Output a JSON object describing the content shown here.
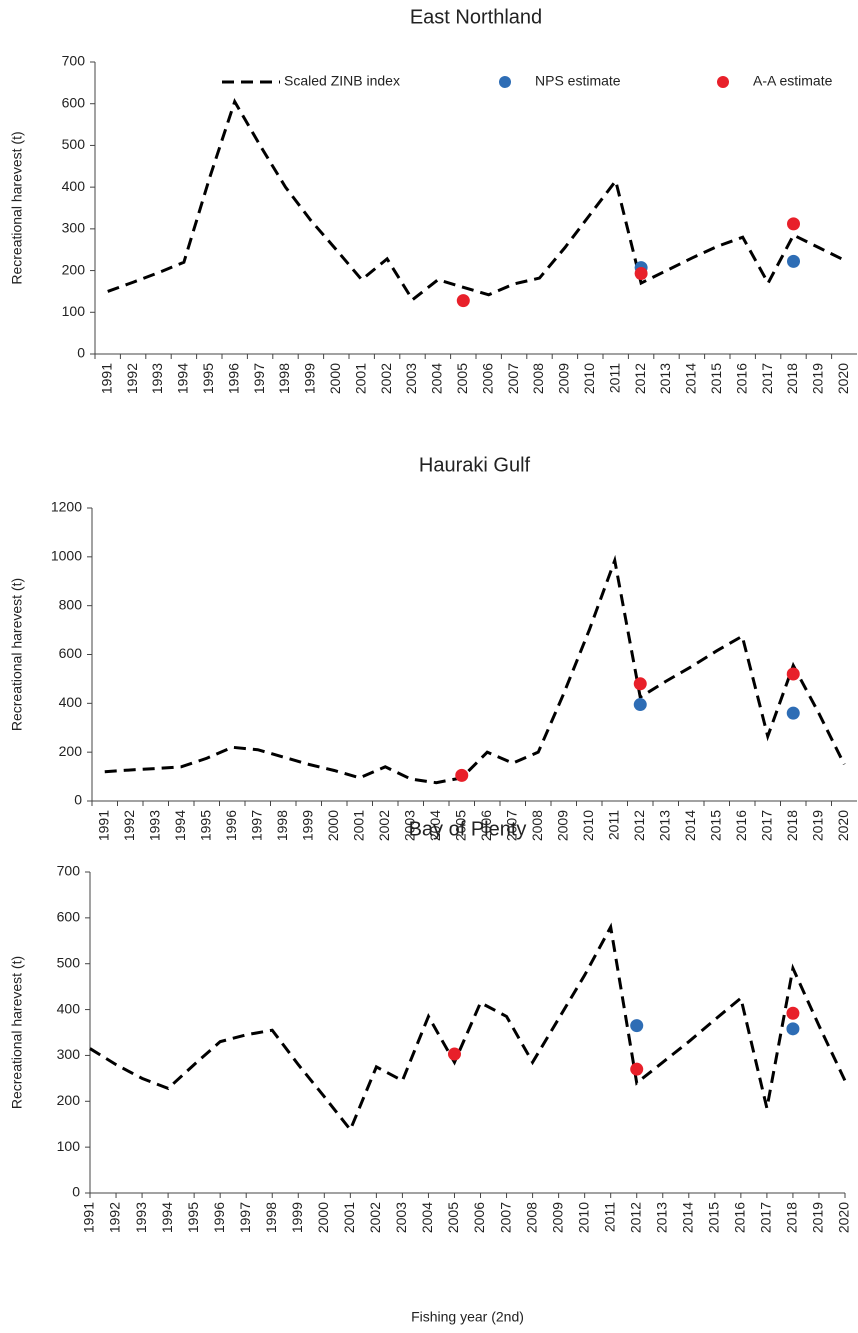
{
  "chart_data": [
    {
      "type": "line",
      "title": "East Northland",
      "ylabel": "Recreational harevest (t)",
      "legend": true,
      "categories": [
        "1991",
        "1992",
        "1993",
        "1994",
        "1995",
        "1996",
        "1997",
        "1998",
        "1999",
        "2000",
        "2001",
        "2002",
        "2003",
        "2004",
        "2005",
        "2006",
        "2007",
        "2008",
        "2009",
        "2010",
        "2011",
        "2012",
        "2013",
        "2014",
        "2015",
        "2016",
        "2017",
        "2018",
        "2019",
        "2020"
      ],
      "ylim": [
        0,
        700
      ],
      "yticks": [
        0,
        100,
        200,
        300,
        400,
        500,
        600,
        700
      ],
      "series": [
        {
          "name": "Scaled ZINB index",
          "color": "#000000",
          "style": "dashed",
          "values": [
            150,
            172,
            195,
            220,
            420,
            605,
            500,
            400,
            320,
            250,
            178,
            228,
            130,
            178,
            160,
            142,
            168,
            182,
            255,
            335,
            415,
            170,
            200,
            230,
            258,
            280,
            170,
            285,
            255,
            225
          ]
        },
        {
          "name": "NPS estimate",
          "color": "#2e6db5",
          "style": "marker",
          "values": [
            null,
            null,
            null,
            null,
            null,
            null,
            null,
            null,
            null,
            null,
            null,
            null,
            null,
            null,
            null,
            null,
            null,
            null,
            null,
            null,
            null,
            207,
            null,
            null,
            null,
            null,
            null,
            222,
            null,
            null
          ]
        },
        {
          "name": "A-A estimate",
          "color": "#e8202a",
          "style": "marker",
          "values": [
            null,
            null,
            null,
            null,
            null,
            null,
            null,
            null,
            null,
            null,
            null,
            null,
            null,
            null,
            128,
            null,
            null,
            null,
            null,
            null,
            null,
            193,
            null,
            null,
            null,
            null,
            null,
            312,
            null,
            null
          ]
        }
      ]
    },
    {
      "type": "line",
      "title": "Hauraki Gulf",
      "ylabel": "Recreational harevest (t)",
      "categories": [
        "1991",
        "1992",
        "1993",
        "1994",
        "1995",
        "1996",
        "1997",
        "1998",
        "1999",
        "2000",
        "2001",
        "2002",
        "2003",
        "2004",
        "2005",
        "2006",
        "2007",
        "2008",
        "2009",
        "2010",
        "2011",
        "2012",
        "2013",
        "2014",
        "2015",
        "2016",
        "2017",
        "2018",
        "2019",
        "2020"
      ],
      "ylim": [
        0,
        1200
      ],
      "yticks": [
        0,
        200,
        400,
        600,
        800,
        1000,
        1200
      ],
      "series": [
        {
          "color": "#000000",
          "style": "dashed",
          "values": [
            120,
            127,
            133,
            140,
            175,
            220,
            210,
            180,
            150,
            125,
            95,
            140,
            90,
            75,
            95,
            200,
            155,
            200,
            440,
            700,
            985,
            425,
            490,
            550,
            615,
            675,
            265,
            555,
            360,
            150
          ]
        },
        {
          "color": "#2e6db5",
          "style": "marker",
          "values": [
            null,
            null,
            null,
            null,
            null,
            null,
            null,
            null,
            null,
            null,
            null,
            null,
            null,
            null,
            null,
            null,
            null,
            null,
            null,
            null,
            null,
            395,
            null,
            null,
            null,
            null,
            null,
            360,
            null,
            null
          ]
        },
        {
          "color": "#e8202a",
          "style": "marker",
          "values": [
            null,
            null,
            null,
            null,
            null,
            null,
            null,
            null,
            null,
            null,
            null,
            null,
            null,
            null,
            105,
            null,
            null,
            null,
            null,
            null,
            null,
            480,
            null,
            null,
            null,
            null,
            null,
            520,
            null,
            null
          ]
        }
      ]
    },
    {
      "type": "line",
      "title": "Bay of Plenty",
      "ylabel": "Recreational harevest (t)",
      "xlabel": "Fishing year (2nd)",
      "categories": [
        "1991",
        "1992",
        "1993",
        "1994",
        "1995",
        "1996",
        "1997",
        "1998",
        "1999",
        "2000",
        "2001",
        "2002",
        "2003",
        "2004",
        "2005",
        "2006",
        "2007",
        "2008",
        "2009",
        "2010",
        "2011",
        "2012",
        "2013",
        "2014",
        "2015",
        "2016",
        "2017",
        "2018",
        "2019",
        "2020"
      ],
      "ylim": [
        0,
        700
      ],
      "yticks": [
        0,
        100,
        200,
        300,
        400,
        500,
        600,
        700
      ],
      "series": [
        {
          "color": "#000000",
          "style": "dashed",
          "values": [
            315,
            280,
            250,
            228,
            280,
            330,
            345,
            355,
            280,
            210,
            138,
            275,
            245,
            385,
            285,
            415,
            385,
            285,
            380,
            475,
            580,
            240,
            285,
            330,
            378,
            425,
            185,
            490,
            365,
            245
          ]
        },
        {
          "color": "#2e6db5",
          "style": "marker",
          "values": [
            null,
            null,
            null,
            null,
            null,
            null,
            null,
            null,
            null,
            null,
            null,
            null,
            null,
            null,
            null,
            null,
            null,
            null,
            null,
            null,
            null,
            365,
            null,
            null,
            null,
            null,
            null,
            358,
            null,
            null
          ]
        },
        {
          "color": "#e8202a",
          "style": "marker",
          "values": [
            null,
            null,
            null,
            null,
            null,
            null,
            null,
            null,
            null,
            null,
            null,
            null,
            null,
            null,
            303,
            null,
            null,
            null,
            null,
            null,
            null,
            270,
            null,
            null,
            null,
            null,
            null,
            392,
            null,
            null
          ]
        }
      ]
    }
  ]
}
